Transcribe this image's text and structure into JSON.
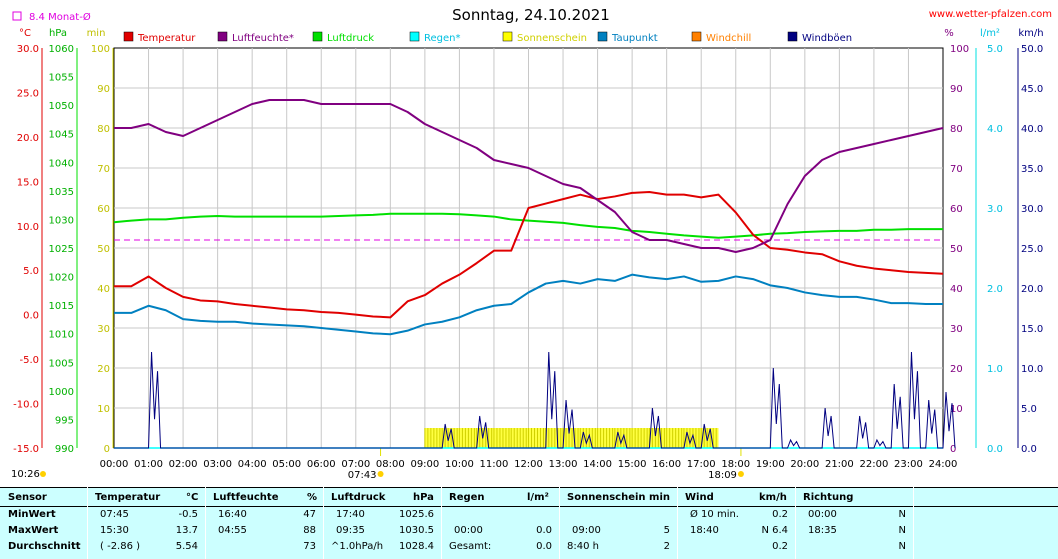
{
  "chart_data": {
    "type": "line",
    "title": "Sonntag, 24.10.2021",
    "source_link": "www.wetter-pfalzen.com",
    "month_avg_label": "8.4 Monat-Ø",
    "month_avg_value": 8.4,
    "axes": {
      "temp": {
        "unit": "°C",
        "range": [
          -15,
          30
        ],
        "ticks": [
          "30.0",
          "25.0",
          "20.0",
          "15.0",
          "10.0",
          "5.0",
          "0.0",
          "-5.0",
          "-10.0",
          "-15.0"
        ]
      },
      "pressure": {
        "unit": "hPa",
        "range": [
          990,
          1060
        ],
        "ticks": [
          "1060",
          "1055",
          "1050",
          "1045",
          "1040",
          "1035",
          "1030",
          "1025",
          "1020",
          "1015",
          "1010",
          "1005",
          "1000",
          "995",
          "990"
        ]
      },
      "minutes": {
        "unit": "min",
        "range": [
          0,
          100
        ],
        "ticks": [
          "100",
          "90",
          "80",
          "70",
          "60",
          "50",
          "40",
          "30",
          "20",
          "10",
          "0"
        ]
      },
      "percent": {
        "unit": "%",
        "range": [
          0,
          100
        ],
        "ticks": [
          "100",
          "90",
          "80",
          "70",
          "60",
          "50",
          "40",
          "30",
          "20",
          "10",
          "0"
        ]
      },
      "rain": {
        "unit": "l/m²",
        "range": [
          0,
          5
        ],
        "ticks": [
          "5.0",
          "4.0",
          "3.0",
          "2.0",
          "1.0",
          "0.0"
        ]
      },
      "wind": {
        "unit": "km/h",
        "range": [
          0,
          50
        ],
        "ticks": [
          "50.0",
          "45.0",
          "40.0",
          "35.0",
          "30.0",
          "25.0",
          "20.0",
          "15.0",
          "10.0",
          "5.0",
          "0.0"
        ]
      },
      "x_ticks": [
        "00:00",
        "01:00",
        "02:00",
        "03:00",
        "04:00",
        "05:00",
        "06:00",
        "07:00",
        "08:00",
        "09:00",
        "10:00",
        "11:00",
        "12:00",
        "13:00",
        "14:00",
        "15:00",
        "16:00",
        "17:00",
        "18:00",
        "19:00",
        "20:00",
        "21:00",
        "22:00",
        "23:00",
        "24:00"
      ]
    },
    "sun_markers": [
      {
        "label": "10:26",
        "hour": -1
      },
      {
        "label": "07:43",
        "hour": 7.717
      },
      {
        "label": "18:09",
        "hour": 18.15
      }
    ],
    "legend": [
      {
        "name": "Temperatur",
        "color": "#e00000"
      },
      {
        "name": "Luftfeuchte*",
        "color": "#800080"
      },
      {
        "name": "Luftdruck",
        "color": "#00e000"
      },
      {
        "name": "Regen*",
        "color": "#00ffff"
      },
      {
        "name": "Sonnenschein",
        "color": "#ffff00"
      },
      {
        "name": "Taupunkt",
        "color": "#0080c0"
      },
      {
        "name": "Windchill",
        "color": "#ff8000"
      },
      {
        "name": "Windböen",
        "color": "#000080"
      }
    ],
    "x_hours": [
      0,
      0.5,
      1,
      1.5,
      2,
      2.5,
      3,
      3.5,
      4,
      4.5,
      5,
      5.5,
      6,
      6.5,
      7,
      7.5,
      8,
      8.5,
      9,
      9.5,
      10,
      10.5,
      11,
      11.5,
      12,
      12.5,
      13,
      13.5,
      14,
      14.5,
      15,
      15.5,
      16,
      16.5,
      17,
      17.5,
      18,
      18.5,
      19,
      19.5,
      20,
      20.5,
      21,
      21.5,
      22,
      22.5,
      23,
      23.5,
      24
    ],
    "series": [
      {
        "name": "Temperatur",
        "axis": "temp",
        "values": [
          3.2,
          3.2,
          4.3,
          3.0,
          2.0,
          1.6,
          1.5,
          1.2,
          1.0,
          0.8,
          0.6,
          0.5,
          0.3,
          0.2,
          0.0,
          -0.2,
          -0.3,
          1.5,
          2.2,
          3.5,
          4.5,
          5.8,
          7.2,
          7.2,
          12.0,
          12.5,
          13.0,
          13.5,
          13.0,
          13.3,
          13.7,
          13.8,
          13.5,
          13.5,
          13.2,
          13.5,
          11.5,
          9.0,
          7.5,
          7.3,
          7.0,
          6.8,
          6.0,
          5.5,
          5.2,
          5.0,
          4.8,
          4.7,
          4.6
        ]
      },
      {
        "name": "Luftfeuchte*",
        "axis": "percent",
        "values": [
          80,
          80,
          81,
          79,
          78,
          80,
          82,
          84,
          86,
          87,
          87,
          87,
          86,
          86,
          86,
          86,
          86,
          84,
          81,
          79,
          77,
          75,
          72,
          71,
          70,
          68,
          66,
          65,
          62,
          59,
          54,
          52,
          52,
          51,
          50,
          50,
          49,
          50,
          52,
          61,
          68,
          72,
          74,
          75,
          76,
          77,
          78,
          79,
          80
        ]
      },
      {
        "name": "Luftdruck",
        "axis": "pressure",
        "values": [
          1029.5,
          1029.8,
          1030.0,
          1030.0,
          1030.3,
          1030.5,
          1030.6,
          1030.5,
          1030.5,
          1030.5,
          1030.5,
          1030.5,
          1030.5,
          1030.6,
          1030.7,
          1030.8,
          1031.0,
          1031.0,
          1031.0,
          1031.0,
          1030.9,
          1030.7,
          1030.5,
          1030.0,
          1029.8,
          1029.6,
          1029.4,
          1029.0,
          1028.7,
          1028.5,
          1028.0,
          1027.8,
          1027.5,
          1027.2,
          1027.0,
          1026.8,
          1027.0,
          1027.2,
          1027.5,
          1027.6,
          1027.8,
          1027.9,
          1028.0,
          1028.0,
          1028.2,
          1028.2,
          1028.3,
          1028.3,
          1028.3
        ]
      },
      {
        "name": "Taupunkt",
        "axis": "temp",
        "values": [
          0.2,
          0.2,
          1.0,
          0.5,
          -0.5,
          -0.7,
          -0.8,
          -0.8,
          -1.0,
          -1.1,
          -1.2,
          -1.3,
          -1.5,
          -1.7,
          -1.9,
          -2.1,
          -2.2,
          -1.8,
          -1.1,
          -0.8,
          -0.3,
          0.5,
          1.0,
          1.2,
          2.5,
          3.5,
          3.8,
          3.5,
          4.0,
          3.8,
          4.5,
          4.2,
          4.0,
          4.3,
          3.7,
          3.8,
          4.3,
          4.0,
          3.3,
          3.0,
          2.5,
          2.2,
          2.0,
          2.0,
          1.7,
          1.3,
          1.3,
          1.2,
          1.2
        ]
      },
      {
        "name": "Windböen",
        "axis": "wind",
        "spiky": true,
        "values": [
          0,
          0,
          12,
          0,
          0,
          0,
          0,
          0,
          0,
          0,
          0,
          0,
          0,
          0,
          0,
          0,
          0,
          0,
          0,
          3,
          0,
          4,
          0,
          0,
          0,
          12,
          6,
          2,
          0,
          2,
          0,
          5,
          0,
          2,
          3,
          0,
          0,
          0,
          10,
          1,
          0,
          5,
          0,
          4,
          1,
          8,
          12,
          6,
          7
        ]
      },
      {
        "name": "Sonnenschein",
        "axis": "minutes",
        "values": [
          0,
          0,
          0,
          0,
          0,
          0,
          0,
          0,
          0,
          0,
          0,
          0,
          0,
          0,
          0,
          0,
          0,
          0,
          5,
          5,
          5,
          5,
          5,
          5,
          5,
          5,
          5,
          5,
          5,
          5,
          5,
          5,
          5,
          5,
          5,
          0,
          0,
          0,
          0,
          0,
          0,
          0,
          0,
          0,
          0,
          0,
          0,
          0,
          0
        ]
      },
      {
        "name": "Regen*",
        "axis": "rain",
        "values": [
          0,
          0,
          0,
          0,
          0,
          0,
          0,
          0,
          0,
          0,
          0,
          0,
          0,
          0,
          0,
          0,
          0,
          0,
          0,
          0,
          0,
          0,
          0,
          0,
          0,
          0,
          0,
          0,
          0,
          0,
          0,
          0,
          0,
          0,
          0,
          0,
          0,
          0,
          0,
          0,
          0,
          0,
          0,
          0,
          0,
          0,
          0,
          0,
          0
        ]
      }
    ]
  },
  "stats": {
    "headers": {
      "sensor": "Sensor",
      "temp": "Temperatur",
      "temp_unit": "°C",
      "hum": "Luftfeuchte",
      "hum_unit": "%",
      "press": "Luftdruck",
      "press_unit": "hPa",
      "rain": "Regen",
      "rain_unit": "l/m²",
      "sun": "Sonnenschein min",
      "wind": "Wind",
      "wind_unit": "km/h",
      "dir": "Richtung"
    },
    "rows": [
      {
        "label": "MinWert",
        "temp_time": "07:45",
        "temp_val": "-0.5",
        "hum_time": "16:40",
        "hum_val": "47",
        "press_time": "17:40",
        "press_val": "1025.6",
        "rain_time": "",
        "rain_val": "",
        "sun_time": "",
        "sun_val": "",
        "wind_time": "Ø 10 min.",
        "wind_val": "0.2",
        "dir_time": "00:00",
        "dir_val": "N"
      },
      {
        "label": "MaxWert",
        "temp_time": "15:30",
        "temp_val": "13.7",
        "hum_time": "04:55",
        "hum_val": "88",
        "press_time": "09:35",
        "press_val": "1030.5",
        "rain_time": "00:00",
        "rain_val": "0.0",
        "sun_time": "09:00",
        "sun_val": "5",
        "wind_time": "18:40",
        "wind_val": "N 6.4",
        "dir_time": "18:35",
        "dir_val": "N"
      },
      {
        "label": "Durchschnitt",
        "temp_time": "( -2.86 )",
        "temp_val": "5.54",
        "hum_time": "",
        "hum_val": "73",
        "press_time": "^1.0hPa/h",
        "press_val": "1028.4",
        "rain_time": "Gesamt:",
        "rain_val": "0.0",
        "sun_time": "8:40 h",
        "sun_val": "2",
        "wind_time": "",
        "wind_val": "0.2",
        "dir_time": "",
        "dir_val": "N"
      }
    ]
  }
}
